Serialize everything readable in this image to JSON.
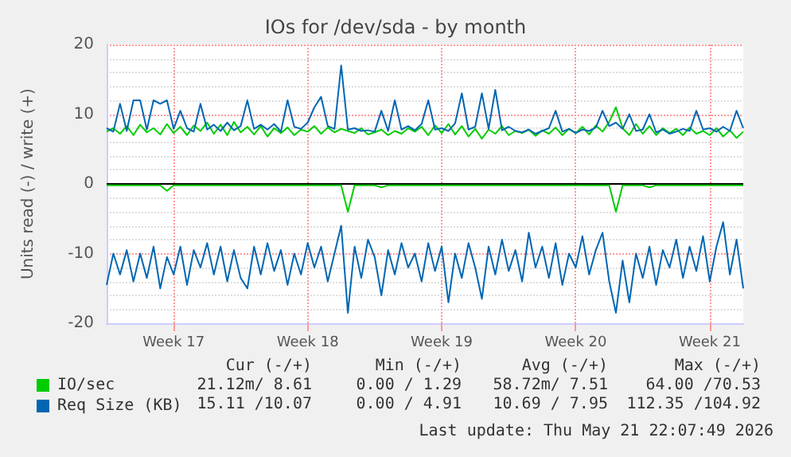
{
  "chart_data": {
    "type": "line",
    "title": "IOs for /dev/sda - by month",
    "ylabel": "Units read (-) / write (+)",
    "categories": [
      null,
      null,
      null,
      null,
      null,
      null,
      null,
      null,
      null,
      null,
      "Week 17",
      null,
      null,
      null,
      null,
      null,
      null,
      null,
      null,
      null,
      null,
      null,
      null,
      null,
      null,
      null,
      null,
      null,
      null,
      null,
      "Week 18",
      null,
      null,
      null,
      null,
      null,
      null,
      null,
      null,
      null,
      null,
      null,
      null,
      null,
      null,
      null,
      null,
      null,
      null,
      null,
      "Week 19",
      null,
      null,
      null,
      null,
      null,
      null,
      null,
      null,
      null,
      null,
      null,
      null,
      null,
      null,
      null,
      null,
      null,
      null,
      null,
      "Week 20",
      null,
      null,
      null,
      null,
      null,
      null,
      null,
      null,
      null,
      null,
      null,
      null,
      null,
      null,
      null,
      null,
      null,
      null,
      null,
      "Week 21",
      null,
      null,
      null,
      null,
      null
    ],
    "ylim": [
      -20,
      20
    ],
    "yticks": [
      -20,
      -10,
      0,
      10,
      20
    ],
    "grid": true,
    "legend": "bottom",
    "marker": "none",
    "line_style": "solid",
    "ref_lines": [
      {
        "axis": "y",
        "value": 0,
        "color": "#000000"
      }
    ],
    "series": [
      {
        "name": "IO/sec",
        "color": "#00cc00",
        "values": [
          7.5,
          8,
          7.2,
          8.3,
          7,
          8.5,
          7.4,
          8,
          7.1,
          8.6,
          7.3,
          8.2,
          7,
          8.4,
          7.6,
          8.8,
          7.2,
          8.5,
          7,
          8.9,
          7.4,
          8.2,
          7.1,
          8.3,
          6.8,
          8,
          7.3,
          8.1,
          7,
          7.8,
          7.5,
          8.3,
          7.2,
          8.1,
          7.4,
          7.9,
          7.6,
          7.3,
          8,
          7.1,
          7.4,
          7.8,
          7,
          7.6,
          7.2,
          8,
          7.5,
          8.2,
          7,
          8.4,
          7.3,
          8.6,
          7.1,
          8.3,
          6.8,
          7.9,
          6.5,
          7.8,
          7.2,
          8.3,
          7,
          7.6,
          7.3,
          7.8,
          6.9,
          7.7,
          7.2,
          8.1,
          7,
          7.9,
          7.3,
          8.2,
          7.1,
          8.4,
          7.5,
          8.9,
          11,
          8,
          7,
          8.6,
          7.2,
          8.3,
          7,
          8,
          7.3,
          7.9,
          7,
          8.1,
          7.2,
          7.6,
          7,
          8,
          6.8,
          7.7,
          6.6,
          7.5
        ]
      },
      {
        "color": "#00cc00",
        "values": [
          -0.2,
          -0.2,
          -0.2,
          -0.2,
          -0.2,
          -0.2,
          -0.2,
          -0.2,
          -0.2,
          -1,
          -0.2,
          -0.2,
          -0.2,
          -0.2,
          -0.2,
          -0.2,
          -0.2,
          -0.2,
          -0.2,
          -0.2,
          -0.2,
          -0.2,
          -0.2,
          -0.2,
          -0.2,
          -0.2,
          -0.2,
          -0.2,
          -0.2,
          -0.2,
          -0.2,
          -0.2,
          -0.2,
          -0.2,
          -0.2,
          -0.2,
          -4,
          -0.2,
          -0.2,
          -0.2,
          -0.2,
          -0.5,
          -0.2,
          -0.2,
          -0.2,
          -0.2,
          -0.2,
          -0.2,
          -0.2,
          -0.2,
          -0.2,
          -0.2,
          -0.2,
          -0.2,
          -0.2,
          -0.2,
          -0.2,
          -0.2,
          -0.2,
          -0.2,
          -0.2,
          -0.2,
          -0.2,
          -0.2,
          -0.2,
          -0.2,
          -0.2,
          -0.2,
          -0.2,
          -0.2,
          -0.2,
          -0.2,
          -0.2,
          -0.2,
          -0.2,
          -0.2,
          -4,
          -0.2,
          -0.2,
          -0.2,
          -0.2,
          -0.5,
          -0.2,
          -0.2,
          -0.2,
          -0.2,
          -0.2,
          -0.2,
          -0.2,
          -0.2,
          -0.2,
          -0.2,
          -0.2,
          -0.2,
          -0.2,
          -0.2
        ]
      },
      {
        "name": "Req Size (KB)",
        "color": "#0066b3",
        "values": [
          8,
          7.5,
          11.5,
          7.6,
          12,
          12,
          7.8,
          12,
          11.5,
          12,
          7.9,
          10.5,
          8,
          7.5,
          11.5,
          7.8,
          8.5,
          7.6,
          8.8,
          7.7,
          8.3,
          12,
          7.9,
          8.5,
          7.8,
          8.6,
          7.5,
          12,
          8.2,
          7.9,
          8.8,
          11,
          12.5,
          8.3,
          7.9,
          17,
          7.8,
          8,
          7.6,
          7.7,
          7.5,
          10.5,
          7.6,
          12,
          7.8,
          8.3,
          7.7,
          8.6,
          12,
          7.8,
          8,
          7.6,
          8.7,
          13,
          7.8,
          8.2,
          13,
          7.9,
          13.5,
          7.7,
          8.2,
          7.6,
          7.4,
          7.8,
          7.2,
          7.6,
          8,
          10.5,
          7.5,
          7.9,
          7.3,
          7.8,
          7.6,
          8.1,
          10.5,
          8.3,
          8.8,
          7.9,
          10,
          7.6,
          7.8,
          10,
          7.4,
          7.8,
          7.2,
          7.5,
          7.9,
          7.6,
          10.5,
          7.8,
          8,
          7.5,
          8.2,
          7.6,
          10.5,
          8
        ]
      },
      {
        "color": "#0066b3",
        "values": [
          -14.5,
          -10,
          -13,
          -9.5,
          -14,
          -10,
          -13.5,
          -9,
          -15,
          -10.5,
          -13,
          -9,
          -14.5,
          -9.5,
          -12,
          -8.5,
          -13,
          -9,
          -14,
          -9.5,
          -13.5,
          -15,
          -9,
          -13,
          -8.5,
          -12.5,
          -9.5,
          -14.5,
          -10,
          -13,
          -8.5,
          -12,
          -9,
          -14,
          -10,
          -6,
          -18.5,
          -9,
          -13.5,
          -8,
          -10.5,
          -16,
          -9.5,
          -13,
          -8.5,
          -12,
          -10,
          -14,
          -8.5,
          -12.5,
          -9,
          -17,
          -10,
          -13.5,
          -8.5,
          -12,
          -16.5,
          -9,
          -13,
          -8,
          -12.5,
          -9.5,
          -14,
          -7,
          -12,
          -9,
          -13.5,
          -8.5,
          -14.5,
          -10,
          -12,
          -7.5,
          -13,
          -9.5,
          -7,
          -14,
          -18.5,
          -11,
          -17,
          -10,
          -13.5,
          -9,
          -14.5,
          -9.5,
          -12,
          -8,
          -13.5,
          -9,
          -12.5,
          -7.5,
          -14,
          -9,
          -5.5,
          -13,
          -8,
          -15
        ]
      }
    ],
    "annotations": [
      "Cur (-/+)",
      "Min (-/+)",
      "Avg (-/+)",
      "Max (-/+)",
      "21.12m/ 8.61",
      "0.00 / 1.29",
      "58.72m/ 7.51",
      "64.00 /70.53",
      "15.11 /10.07",
      "0.00 / 4.91",
      "10.69 / 7.95",
      "112.35 /104.92",
      "Last update: Thu May 21 22:07:49 2026"
    ]
  }
}
